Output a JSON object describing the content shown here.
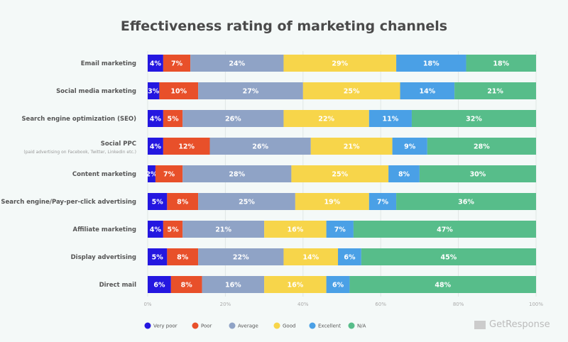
{
  "chart_data": {
    "type": "bar",
    "orientation": "horizontal",
    "stacked": true,
    "title": "Effectiveness rating of marketing channels",
    "categories": [
      "Email marketing",
      "Social media marketing",
      "Search engine optimization (SEO)",
      "Social PPC",
      "Content marketing",
      "Search engine/Pay-per-click advertising",
      "Affiliate marketing",
      "Display advertising",
      "Direct mail"
    ],
    "category_subtitles": {
      "Social PPC": "(paid advertising on Facebook, Twitter, Linkedin etc.)"
    },
    "series": [
      {
        "name": "Very poor",
        "color": "#2417e0",
        "values": [
          4,
          3,
          4,
          4,
          2,
          5,
          4,
          5,
          6
        ]
      },
      {
        "name": "Poor",
        "color": "#e8502a",
        "values": [
          7,
          10,
          5,
          12,
          7,
          8,
          5,
          8,
          8
        ]
      },
      {
        "name": "Average",
        "color": "#8fa3c6",
        "values": [
          24,
          27,
          26,
          26,
          28,
          25,
          21,
          22,
          16
        ]
      },
      {
        "name": "Good",
        "color": "#f7d54a",
        "values": [
          29,
          25,
          22,
          21,
          25,
          19,
          16,
          14,
          16
        ]
      },
      {
        "name": "Excellent",
        "color": "#4aa0e6",
        "values": [
          18,
          14,
          11,
          9,
          8,
          7,
          7,
          6,
          6
        ]
      },
      {
        "name": "N/A",
        "color": "#57bd8a",
        "values": [
          18,
          21,
          32,
          28,
          30,
          36,
          47,
          45,
          48
        ]
      }
    ],
    "xlim": [
      0,
      100
    ],
    "xticks": [
      "0%",
      "20%",
      "40%",
      "60%",
      "80%",
      "100%"
    ],
    "grid": true,
    "legend_position": "bottom-left"
  },
  "brand": "GetResponse"
}
